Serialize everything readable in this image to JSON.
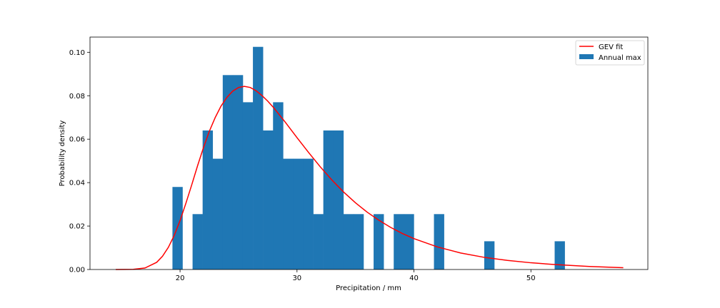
{
  "chart_data": {
    "type": "bar",
    "xlabel": "Precipitation / mm",
    "ylabel": "Probability density",
    "xlim": [
      12.3,
      60.0
    ],
    "ylim": [
      0.0,
      0.107
    ],
    "xticks": [
      20,
      30,
      40,
      50
    ],
    "yticks": [
      0.0,
      0.02,
      0.04,
      0.06,
      0.08,
      0.1
    ],
    "ytick_labels": [
      "0.00",
      "0.02",
      "0.04",
      "0.06",
      "0.08",
      "0.10"
    ],
    "legend": {
      "placement": "top-right"
    },
    "grid": false,
    "histogram": {
      "name": "Annual max",
      "color": "#1f77b4",
      "bin_edges": [
        19.35,
        20.21,
        21.07,
        21.93,
        22.79,
        23.65,
        24.51,
        25.37,
        26.23,
        27.09,
        27.95,
        28.81,
        29.67,
        30.53,
        31.39,
        32.25,
        33.11,
        33.97,
        34.83,
        35.69,
        36.55,
        37.41,
        38.27,
        39.13,
        39.99,
        40.85,
        41.71,
        42.57,
        43.43,
        44.29,
        45.15,
        46.01,
        46.87,
        47.73,
        48.59,
        49.45,
        50.31,
        51.17,
        52.03,
        52.89
      ],
      "densities": [
        0.038,
        0.0,
        0.0255,
        0.064,
        0.051,
        0.0895,
        0.0895,
        0.077,
        0.1025,
        0.064,
        0.077,
        0.051,
        0.051,
        0.051,
        0.0255,
        0.064,
        0.064,
        0.0255,
        0.0255,
        0.0,
        0.0255,
        0.0,
        0.0255,
        0.0255,
        0.0,
        0.0,
        0.0255,
        0.0,
        0.0,
        0.0,
        0.0,
        0.013,
        0.0,
        0.0,
        0.0,
        0.0,
        0.0,
        0.0,
        0.013
      ]
    },
    "series": [
      {
        "name": "GEV fit",
        "color": "#ff0000",
        "x": [
          14.5,
          16,
          17,
          18,
          18.5,
          19,
          19.5,
          20,
          20.5,
          21,
          21.5,
          22,
          22.5,
          23,
          23.5,
          24,
          24.5,
          25,
          25.5,
          26,
          26.5,
          27,
          27.5,
          28,
          29,
          30,
          31,
          32,
          33,
          34,
          35,
          36,
          37,
          38,
          39,
          40,
          42,
          44,
          46,
          48,
          50,
          52,
          55,
          57.9
        ],
        "y": [
          0.0,
          0.0001,
          0.0007,
          0.0033,
          0.0061,
          0.0102,
          0.0157,
          0.0225,
          0.0305,
          0.039,
          0.0478,
          0.0561,
          0.0636,
          0.0699,
          0.0752,
          0.0792,
          0.0821,
          0.0838,
          0.0843,
          0.0838,
          0.0823,
          0.0801,
          0.0775,
          0.0745,
          0.0678,
          0.0607,
          0.0538,
          0.0472,
          0.0411,
          0.0356,
          0.0307,
          0.0264,
          0.0227,
          0.0194,
          0.0166,
          0.0142,
          0.0104,
          0.0076,
          0.0056,
          0.0042,
          0.0031,
          0.0023,
          0.0014,
          0.0008
        ]
      }
    ]
  }
}
